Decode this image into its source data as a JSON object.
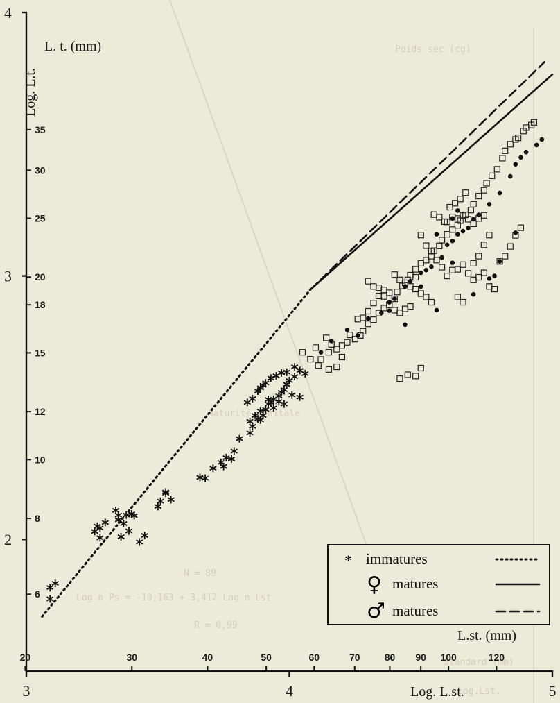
{
  "chart_data": {
    "type": "scatter",
    "title": "",
    "xlabel": "Log. L.st.",
    "ylabel": "Log. L.t.",
    "x_unit_label": "L.st. (mm)",
    "y_unit_label": "L. t. (mm)",
    "xlim": [
      3,
      5
    ],
    "ylim": [
      1.5,
      4
    ],
    "x_log_ticks": [
      "3",
      "4",
      "5"
    ],
    "y_log_ticks": [
      "2",
      "3",
      "4"
    ],
    "x_mm_ticks": [
      20,
      30,
      40,
      50,
      60,
      70,
      80,
      90,
      100,
      120
    ],
    "y_mm_ticks": [
      6,
      8,
      10,
      12,
      15,
      18,
      20,
      25,
      30,
      35
    ],
    "grid": false,
    "legend": {
      "position": "bottom-right",
      "entries": [
        {
          "symbol": "*",
          "label": "immatures",
          "line": "dotted"
        },
        {
          "symbol": "♀",
          "label": "matures",
          "line": "solid"
        },
        {
          "symbol": "♂",
          "label": "matures",
          "line": "dashed"
        }
      ]
    },
    "series": [
      {
        "marker": "star",
        "line_style": "dotted",
        "fit": {
          "x": [
            3.06,
            4.08
          ],
          "y": [
            1.707,
            2.948
          ]
        },
        "points": [
          [
            3.09,
            1.817
          ],
          [
            3.11,
            1.833
          ],
          [
            3.09,
            1.774
          ],
          [
            3.26,
            2.03
          ],
          [
            3.27,
            2.05
          ],
          [
            3.28,
            2.043
          ],
          [
            3.3,
            2.064
          ],
          [
            3.28,
            2.006
          ],
          [
            3.34,
            2.11
          ],
          [
            3.35,
            2.092
          ],
          [
            3.37,
            2.06
          ],
          [
            3.38,
            2.092
          ],
          [
            3.35,
            2.074
          ],
          [
            3.39,
            2.032
          ],
          [
            3.36,
            2.01
          ],
          [
            3.43,
            1.99
          ],
          [
            3.45,
            2.015
          ],
          [
            3.41,
            2.09
          ],
          [
            3.4,
            2.097
          ],
          [
            3.5,
            2.125
          ],
          [
            3.55,
            2.151
          ],
          [
            3.51,
            2.145
          ],
          [
            3.53,
            2.175
          ],
          [
            3.53,
            2.18
          ],
          [
            3.66,
            2.235
          ],
          [
            3.68,
            2.232
          ],
          [
            3.71,
            2.27
          ],
          [
            3.74,
            2.292
          ],
          [
            3.75,
            2.277
          ],
          [
            3.78,
            2.305
          ],
          [
            3.79,
            2.335
          ],
          [
            3.76,
            2.31
          ],
          [
            3.81,
            2.382
          ],
          [
            3.85,
            2.404
          ],
          [
            3.86,
            2.429
          ],
          [
            3.88,
            2.457
          ],
          [
            3.89,
            2.453
          ],
          [
            3.9,
            2.47
          ],
          [
            3.91,
            2.493
          ],
          [
            3.93,
            2.52
          ],
          [
            3.94,
            2.532
          ],
          [
            3.96,
            2.545
          ],
          [
            3.97,
            2.558
          ],
          [
            3.98,
            2.568
          ],
          [
            3.99,
            2.588
          ],
          [
            4.0,
            2.603
          ],
          [
            4.02,
            2.618
          ],
          [
            3.85,
            2.448
          ],
          [
            3.87,
            2.47
          ],
          [
            3.89,
            2.487
          ],
          [
            3.92,
            2.514
          ],
          [
            3.94,
            2.499
          ],
          [
            3.96,
            2.523
          ],
          [
            3.98,
            2.514
          ],
          [
            4.01,
            2.548
          ],
          [
            4.04,
            2.54
          ],
          [
            3.89,
            2.575
          ],
          [
            3.91,
            2.594
          ],
          [
            3.93,
            2.612
          ],
          [
            3.95,
            2.621
          ],
          [
            3.97,
            2.632
          ],
          [
            4.02,
            2.655
          ],
          [
            4.04,
            2.641
          ],
          [
            4.06,
            2.629
          ],
          [
            3.84,
            2.52
          ],
          [
            3.86,
            2.534
          ],
          [
            3.88,
            2.563
          ],
          [
            3.9,
            2.585
          ],
          [
            3.92,
            2.531
          ],
          [
            3.99,
            2.635
          ]
        ]
      },
      {
        "marker": "square",
        "line_style": "solid",
        "fit": {
          "x": [
            4.08,
            5.0
          ],
          "y": [
            2.948,
            3.765
          ]
        },
        "points": [
          [
            4.05,
            2.71
          ],
          [
            4.08,
            2.684
          ],
          [
            4.1,
            2.728
          ],
          [
            4.11,
            2.66
          ],
          [
            4.12,
            2.683
          ],
          [
            4.15,
            2.71
          ],
          [
            4.15,
            2.645
          ],
          [
            4.18,
            2.655
          ],
          [
            4.2,
            2.692
          ],
          [
            4.22,
            2.748
          ],
          [
            4.23,
            2.776
          ],
          [
            4.25,
            2.76
          ],
          [
            4.27,
            2.774
          ],
          [
            4.28,
            2.79
          ],
          [
            4.3,
            2.818
          ],
          [
            4.32,
            2.834
          ],
          [
            4.34,
            2.859
          ],
          [
            4.36,
            2.878
          ],
          [
            4.38,
            2.89
          ],
          [
            4.4,
            2.913
          ],
          [
            4.41,
            2.939
          ],
          [
            4.43,
            2.962
          ],
          [
            4.45,
            2.985
          ],
          [
            4.46,
            3.003
          ],
          [
            4.48,
            3.025
          ],
          [
            4.5,
            3.048
          ],
          [
            4.52,
            3.06
          ],
          [
            4.54,
            3.075
          ],
          [
            4.55,
            3.096
          ],
          [
            4.57,
            3.114
          ],
          [
            4.58,
            3.136
          ],
          [
            4.6,
            3.158
          ],
          [
            4.62,
            3.176
          ],
          [
            4.64,
            3.192
          ],
          [
            4.65,
            3.21
          ],
          [
            4.67,
            3.232
          ],
          [
            4.69,
            3.25
          ],
          [
            4.7,
            3.272
          ],
          [
            4.72,
            3.303
          ],
          [
            4.74,
            3.325
          ],
          [
            4.75,
            3.352
          ],
          [
            4.77,
            3.38
          ],
          [
            4.79,
            3.405
          ],
          [
            4.81,
            3.447
          ],
          [
            4.82,
            3.475
          ],
          [
            4.84,
            3.5
          ],
          [
            4.86,
            3.518
          ],
          [
            4.87,
            3.524
          ],
          [
            4.89,
            3.55
          ],
          [
            4.9,
            3.563
          ],
          [
            4.92,
            3.573
          ],
          [
            4.93,
            3.583
          ],
          [
            4.6,
            3.205
          ],
          [
            4.62,
            3.224
          ],
          [
            4.64,
            3.218
          ],
          [
            4.66,
            3.229
          ],
          [
            4.68,
            3.215
          ],
          [
            4.7,
            3.198
          ],
          [
            4.72,
            3.218
          ],
          [
            4.74,
            3.23
          ],
          [
            4.5,
            3.155
          ],
          [
            4.52,
            3.115
          ],
          [
            4.54,
            3.094
          ],
          [
            4.56,
            3.06
          ],
          [
            4.58,
            3.033
          ],
          [
            4.6,
            3.0
          ],
          [
            4.62,
            3.022
          ],
          [
            4.64,
            3.025
          ],
          [
            4.66,
            3.043
          ],
          [
            4.68,
            3.01
          ],
          [
            4.7,
            3.048
          ],
          [
            4.72,
            3.075
          ],
          [
            4.74,
            3.118
          ],
          [
            4.76,
            3.155
          ],
          [
            4.55,
            3.233
          ],
          [
            4.57,
            3.223
          ],
          [
            4.59,
            3.206
          ],
          [
            4.61,
            3.261
          ],
          [
            4.63,
            3.276
          ],
          [
            4.65,
            3.292
          ],
          [
            4.67,
            3.316
          ],
          [
            4.34,
            2.955
          ],
          [
            4.36,
            2.922
          ],
          [
            4.38,
            2.89
          ],
          [
            4.4,
            2.87
          ],
          [
            4.42,
            2.86
          ],
          [
            4.44,
            2.875
          ],
          [
            4.46,
            2.884
          ],
          [
            4.48,
            2.95
          ],
          [
            4.26,
            2.836
          ],
          [
            4.28,
            2.841
          ],
          [
            4.3,
            2.866
          ],
          [
            4.32,
            2.897
          ],
          [
            4.34,
            2.924
          ],
          [
            4.36,
            2.947
          ],
          [
            4.38,
            2.936
          ],
          [
            4.3,
            2.98
          ],
          [
            4.32,
            2.96
          ],
          [
            4.4,
            3.005
          ],
          [
            4.42,
            2.985
          ],
          [
            4.44,
            2.974
          ],
          [
            4.46,
            2.96
          ],
          [
            4.48,
            2.995
          ],
          [
            4.5,
            2.933
          ],
          [
            4.52,
            2.92
          ],
          [
            4.54,
            2.9
          ],
          [
            4.7,
            2.985
          ],
          [
            4.72,
            2.995
          ],
          [
            4.74,
            3.012
          ],
          [
            4.8,
            3.055
          ],
          [
            4.82,
            3.075
          ],
          [
            4.84,
            3.112
          ],
          [
            4.86,
            3.154
          ],
          [
            4.88,
            3.183
          ],
          [
            4.78,
            2.95
          ],
          [
            4.76,
            2.96
          ],
          [
            4.66,
            2.9
          ],
          [
            4.64,
            2.92
          ],
          [
            4.42,
            2.61
          ],
          [
            4.45,
            2.625
          ],
          [
            4.48,
            2.62
          ],
          [
            4.5,
            2.65
          ],
          [
            4.14,
            2.765
          ],
          [
            4.16,
            2.74
          ],
          [
            4.18,
            2.722
          ],
          [
            4.2,
            2.736
          ]
        ]
      },
      {
        "marker": "dot",
        "line_style": "dashed",
        "fit": {
          "x": [
            4.08,
            4.97
          ],
          "y": [
            2.948,
            3.812
          ]
        },
        "points": [
          [
            4.12,
            2.71
          ],
          [
            4.16,
            2.753
          ],
          [
            4.22,
            2.795
          ],
          [
            4.26,
            2.774
          ],
          [
            4.3,
            2.838
          ],
          [
            4.35,
            2.86
          ],
          [
            4.38,
            2.9
          ],
          [
            4.4,
            2.913
          ],
          [
            4.44,
            2.96
          ],
          [
            4.46,
            2.98
          ],
          [
            4.5,
            3.012
          ],
          [
            4.52,
            3.022
          ],
          [
            4.54,
            3.035
          ],
          [
            4.58,
            3.07
          ],
          [
            4.6,
            3.118
          ],
          [
            4.62,
            3.133
          ],
          [
            4.64,
            3.158
          ],
          [
            4.66,
            3.17
          ],
          [
            4.68,
            3.182
          ],
          [
            4.7,
            3.215
          ],
          [
            4.72,
            3.232
          ],
          [
            4.76,
            3.272
          ],
          [
            4.8,
            3.315
          ],
          [
            4.84,
            3.378
          ],
          [
            4.86,
            3.424
          ],
          [
            4.88,
            3.45
          ],
          [
            4.9,
            3.47
          ],
          [
            4.94,
            3.497
          ],
          [
            4.96,
            3.518
          ],
          [
            4.44,
            2.815
          ],
          [
            4.56,
            2.87
          ],
          [
            4.5,
            2.96
          ],
          [
            4.62,
            3.05
          ],
          [
            4.7,
            2.93
          ],
          [
            4.76,
            2.99
          ],
          [
            4.78,
            3.0
          ],
          [
            4.8,
            3.055
          ],
          [
            4.86,
            3.164
          ],
          [
            4.38,
            2.868
          ],
          [
            4.56,
            3.158
          ],
          [
            4.62,
            3.218
          ],
          [
            4.64,
            3.248
          ]
        ]
      }
    ]
  },
  "overlay_text": [
    "Poids sec (cg)",
    "N = 89",
    "Log n Ps = -10,163 + 3,412 Log n Lst",
    "R = 0,99",
    "maturité génitale",
    "Standard (mm)",
    "Log.Lst."
  ]
}
